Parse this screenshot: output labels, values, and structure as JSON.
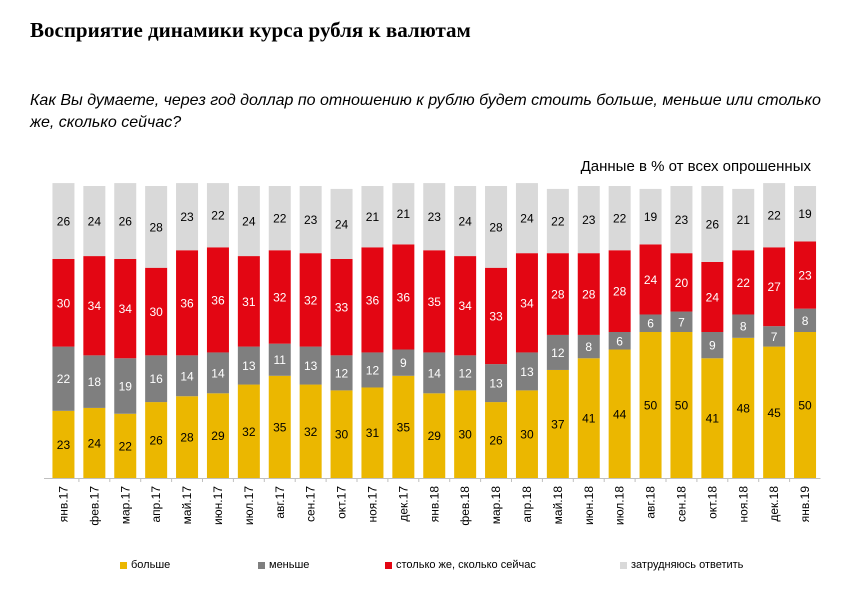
{
  "header": {
    "title": "Восприятие динамики курса рубля к валютам",
    "question": "Как Вы думаете, через год доллар по отношению к рублю будет стоить больше, меньше или столько же, сколько сейчас?",
    "note": "Данные в % от всех опрошенных"
  },
  "chart_data": {
    "type": "bar",
    "stacked": true,
    "title": "Восприятие динамики курса рубля к валютам",
    "ylim": [
      0,
      100
    ],
    "categories": [
      "янв.17",
      "фев.17",
      "мар.17",
      "апр.17",
      "май.17",
      "июн.17",
      "июл.17",
      "авг.17",
      "сен.17",
      "окт.17",
      "ноя.17",
      "дек.17",
      "янв.18",
      "фев.18",
      "мар.18",
      "апр.18",
      "май.18",
      "июн.18",
      "июл.18",
      "авг.18",
      "сен.18",
      "окт.18",
      "ноя.18",
      "дек.18",
      "янв.19"
    ],
    "series": [
      {
        "name": "больше",
        "color": "#EBB700",
        "values": [
          23,
          24,
          22,
          26,
          28,
          29,
          32,
          35,
          32,
          30,
          31,
          35,
          29,
          30,
          26,
          30,
          37,
          41,
          44,
          50,
          50,
          41,
          48,
          45,
          50
        ]
      },
      {
        "name": "меньше",
        "color": "#7F7F7F",
        "values": [
          22,
          18,
          19,
          16,
          14,
          14,
          13,
          11,
          13,
          12,
          12,
          9,
          14,
          12,
          13,
          13,
          12,
          8,
          6,
          6,
          7,
          9,
          8,
          7,
          8
        ]
      },
      {
        "name": "столько же, сколько сейчас",
        "color": "#E30613",
        "values": [
          30,
          34,
          34,
          30,
          36,
          36,
          31,
          32,
          32,
          33,
          36,
          36,
          35,
          34,
          33,
          34,
          28,
          28,
          28,
          24,
          20,
          24,
          22,
          27,
          23
        ]
      },
      {
        "name": "затрудняюсь ответить",
        "color": "#D9D9D9",
        "values": [
          26,
          24,
          26,
          28,
          23,
          22,
          24,
          22,
          23,
          24,
          21,
          21,
          23,
          24,
          28,
          24,
          22,
          23,
          22,
          19,
          23,
          26,
          21,
          22,
          19
        ]
      }
    ],
    "legend_position": "bottom"
  }
}
